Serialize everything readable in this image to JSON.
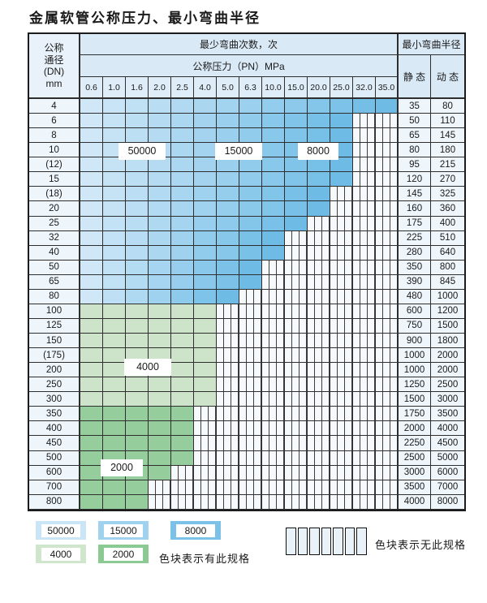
{
  "title": "金属软管公称压力、最小弯曲半径",
  "table": {
    "corner_header_lines": [
      "公称",
      "通径",
      "(DN)",
      "mm"
    ],
    "cycles_header": "最少弯曲次数，次",
    "pressure_header": "公称压力（PN）MPa",
    "pressure_values": [
      "0.6",
      "1.0",
      "1.6",
      "2.0",
      "2.5",
      "4.0",
      "5.0",
      "6.3",
      "10.0",
      "15.0",
      "20.0",
      "25.0",
      "32.0",
      "35.0"
    ],
    "radius_header": "最小弯曲半径",
    "static_header": "静 态",
    "dynamic_header": "动 态",
    "rows": [
      {
        "dn": "4",
        "static": "35",
        "dynamic": "80",
        "spec_cols": 14,
        "band": "blue"
      },
      {
        "dn": "6",
        "static": "50",
        "dynamic": "110",
        "spec_cols": 12,
        "band": "blue"
      },
      {
        "dn": "8",
        "static": "65",
        "dynamic": "145",
        "spec_cols": 12,
        "band": "blue"
      },
      {
        "dn": "10",
        "static": "80",
        "dynamic": "180",
        "spec_cols": 12,
        "band": "blue"
      },
      {
        "dn": "(12)",
        "static": "95",
        "dynamic": "215",
        "spec_cols": 12,
        "band": "blue"
      },
      {
        "dn": "15",
        "static": "120",
        "dynamic": "270",
        "spec_cols": 12,
        "band": "blue"
      },
      {
        "dn": "(18)",
        "static": "145",
        "dynamic": "325",
        "spec_cols": 11,
        "band": "blue"
      },
      {
        "dn": "20",
        "static": "160",
        "dynamic": "360",
        "spec_cols": 11,
        "band": "blue"
      },
      {
        "dn": "25",
        "static": "175",
        "dynamic": "400",
        "spec_cols": 10,
        "band": "blue"
      },
      {
        "dn": "32",
        "static": "225",
        "dynamic": "510",
        "spec_cols": 9,
        "band": "blue"
      },
      {
        "dn": "40",
        "static": "280",
        "dynamic": "640",
        "spec_cols": 9,
        "band": "blue"
      },
      {
        "dn": "50",
        "static": "350",
        "dynamic": "800",
        "spec_cols": 8,
        "band": "blue"
      },
      {
        "dn": "65",
        "static": "390",
        "dynamic": "845",
        "spec_cols": 8,
        "band": "blue"
      },
      {
        "dn": "80",
        "static": "480",
        "dynamic": "1000",
        "spec_cols": 7,
        "band": "blue"
      },
      {
        "dn": "100",
        "static": "600",
        "dynamic": "1200",
        "spec_cols": 6,
        "band": "green_4000"
      },
      {
        "dn": "125",
        "static": "750",
        "dynamic": "1500",
        "spec_cols": 6,
        "band": "green_4000"
      },
      {
        "dn": "150",
        "static": "900",
        "dynamic": "1800",
        "spec_cols": 6,
        "band": "green_4000"
      },
      {
        "dn": "(175)",
        "static": "1000",
        "dynamic": "2000",
        "spec_cols": 6,
        "band": "green_4000"
      },
      {
        "dn": "200",
        "static": "1000",
        "dynamic": "2000",
        "spec_cols": 6,
        "band": "green_4000"
      },
      {
        "dn": "250",
        "static": "1250",
        "dynamic": "2500",
        "spec_cols": 6,
        "band": "green_4000"
      },
      {
        "dn": "300",
        "static": "1500",
        "dynamic": "3000",
        "spec_cols": 6,
        "band": "green_4000"
      },
      {
        "dn": "350",
        "static": "1750",
        "dynamic": "3500",
        "spec_cols": 5,
        "band": "green_2000"
      },
      {
        "dn": "400",
        "static": "2000",
        "dynamic": "4000",
        "spec_cols": 5,
        "band": "green_2000"
      },
      {
        "dn": "450",
        "static": "2250",
        "dynamic": "4500",
        "spec_cols": 5,
        "band": "green_2000"
      },
      {
        "dn": "500",
        "static": "2500",
        "dynamic": "5000",
        "spec_cols": 5,
        "band": "green_2000"
      },
      {
        "dn": "600",
        "static": "3000",
        "dynamic": "6000",
        "spec_cols": 4,
        "band": "green_2000"
      },
      {
        "dn": "700",
        "static": "3500",
        "dynamic": "7000",
        "spec_cols": 3,
        "band": "green_2000"
      },
      {
        "dn": "800",
        "static": "4000",
        "dynamic": "8000",
        "spec_cols": 3,
        "band": "green_2000"
      }
    ]
  },
  "overlay_labels": {
    "l50000": "50000",
    "l15000": "15000",
    "l8000": "8000",
    "l4000": "4000",
    "l2000": "2000"
  },
  "legend": {
    "items": [
      {
        "label": "50000",
        "color": "#c9e5f6"
      },
      {
        "label": "15000",
        "color": "#9fd2ee"
      },
      {
        "label": "8000",
        "color": "#7cc2e8"
      },
      {
        "label": "4000",
        "color": "#cfe6cd"
      },
      {
        "label": "2000",
        "color": "#8cca94"
      }
    ],
    "has_spec_note": "色块表示有此规格",
    "no_spec_note": "色块表示无此规格",
    "no_spec_cells": 7
  },
  "colors": {
    "blue_gradient_start": "#cfe7f7",
    "blue_gradient_end": "#6ebce6",
    "green_light": "#cde4cb",
    "green_dark": "#96cd9d",
    "header_bg": "#d9e9f6",
    "label_bg": "#eef5fb",
    "grid_line": "#2e2e2e"
  }
}
